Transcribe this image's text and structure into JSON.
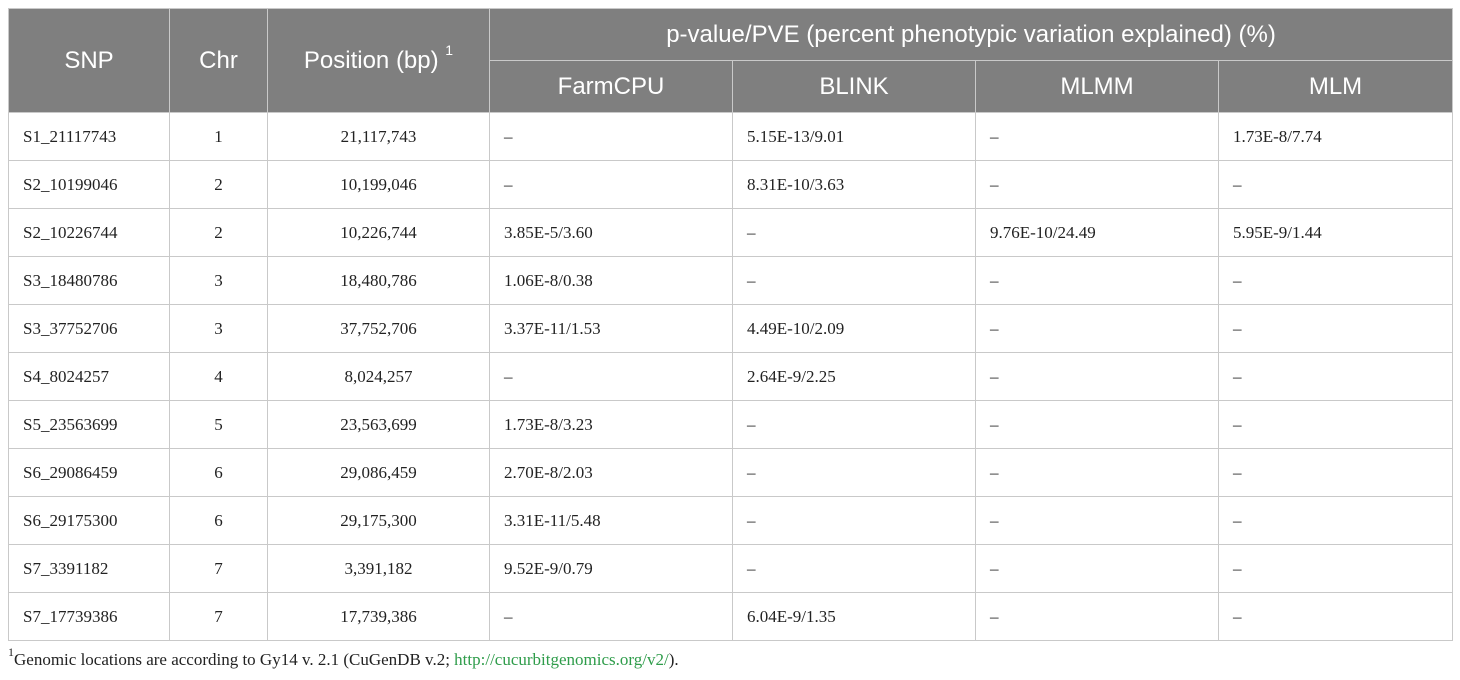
{
  "table": {
    "headers": {
      "snp": "SNP",
      "chr": "Chr",
      "position": "Position (bp)",
      "position_sup": "1",
      "group": "p-value/PVE (percent phenotypic variation explained) (%)",
      "methods": [
        "FarmCPU",
        "BLINK",
        "MLMM",
        "MLM"
      ]
    },
    "rows": [
      {
        "snp": "S1_21117743",
        "chr": "1",
        "pos": "21,117,743",
        "farmcpu": "–",
        "blink": "5.15E-13/9.01",
        "mlmm": "–",
        "mlm": "1.73E-8/7.74"
      },
      {
        "snp": "S2_10199046",
        "chr": "2",
        "pos": "10,199,046",
        "farmcpu": "–",
        "blink": "8.31E-10/3.63",
        "mlmm": "–",
        "mlm": "–"
      },
      {
        "snp": "S2_10226744",
        "chr": "2",
        "pos": "10,226,744",
        "farmcpu": "3.85E-5/3.60",
        "blink": "–",
        "mlmm": "9.76E-10/24.49",
        "mlm": "5.95E-9/1.44"
      },
      {
        "snp": "S3_18480786",
        "chr": "3",
        "pos": "18,480,786",
        "farmcpu": "1.06E-8/0.38",
        "blink": "–",
        "mlmm": "–",
        "mlm": "–"
      },
      {
        "snp": "S3_37752706",
        "chr": "3",
        "pos": "37,752,706",
        "farmcpu": "3.37E-11/1.53",
        "blink": "4.49E-10/2.09",
        "mlmm": "–",
        "mlm": "–"
      },
      {
        "snp": "S4_8024257",
        "chr": "4",
        "pos": "8,024,257",
        "farmcpu": "–",
        "blink": "2.64E-9/2.25",
        "mlmm": "–",
        "mlm": "–"
      },
      {
        "snp": "S5_23563699",
        "chr": "5",
        "pos": "23,563,699",
        "farmcpu": "1.73E-8/3.23",
        "blink": "–",
        "mlmm": "–",
        "mlm": "–"
      },
      {
        "snp": "S6_29086459",
        "chr": "6",
        "pos": "29,086,459",
        "farmcpu": "2.70E-8/2.03",
        "blink": "–",
        "mlmm": "–",
        "mlm": "–"
      },
      {
        "snp": "S6_29175300",
        "chr": "6",
        "pos": "29,175,300",
        "farmcpu": "3.31E-11/5.48",
        "blink": "–",
        "mlmm": "–",
        "mlm": "–"
      },
      {
        "snp": "S7_3391182",
        "chr": "7",
        "pos": "3,391,182",
        "farmcpu": "9.52E-9/0.79",
        "blink": "–",
        "mlmm": "–",
        "mlm": "–"
      },
      {
        "snp": "S7_17739386",
        "chr": "7",
        "pos": "17,739,386",
        "farmcpu": "–",
        "blink": "6.04E-9/1.35",
        "mlmm": "–",
        "mlm": "–"
      }
    ]
  },
  "footnote": {
    "marker": "1",
    "text": "Genomic locations are according to Gy14 v. 2.1 (CuGenDB v.2; ",
    "link": "http://cucurbitgenomics.org/v2/",
    "tail": ")."
  }
}
